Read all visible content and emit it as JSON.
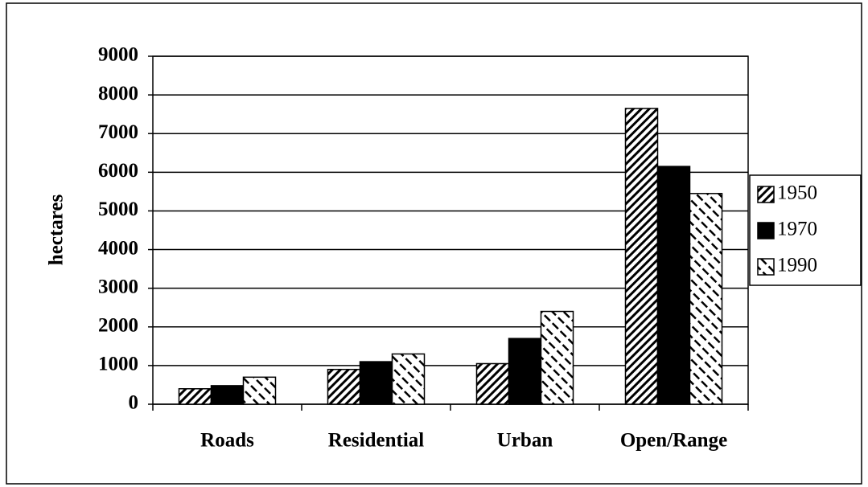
{
  "chart_data": {
    "type": "bar",
    "categories": [
      "Roads",
      "Residential",
      "Urban",
      "Open/Range"
    ],
    "series": [
      {
        "name": "1950",
        "color": "#000000",
        "pattern": "backslash",
        "values": [
          400,
          900,
          1050,
          7650
        ]
      },
      {
        "name": "1970",
        "color": "#000000",
        "pattern": "solid",
        "values": [
          480,
          1100,
          1700,
          6150
        ]
      },
      {
        "name": "1990",
        "color": "#000000",
        "pattern": "slash",
        "values": [
          700,
          1300,
          2400,
          5450
        ]
      }
    ],
    "ylabel": "hectares",
    "ylim": [
      0,
      9000
    ],
    "yticks": [
      0,
      1000,
      2000,
      3000,
      4000,
      5000,
      6000,
      7000,
      8000,
      9000
    ],
    "grid": true,
    "legend": "right"
  }
}
